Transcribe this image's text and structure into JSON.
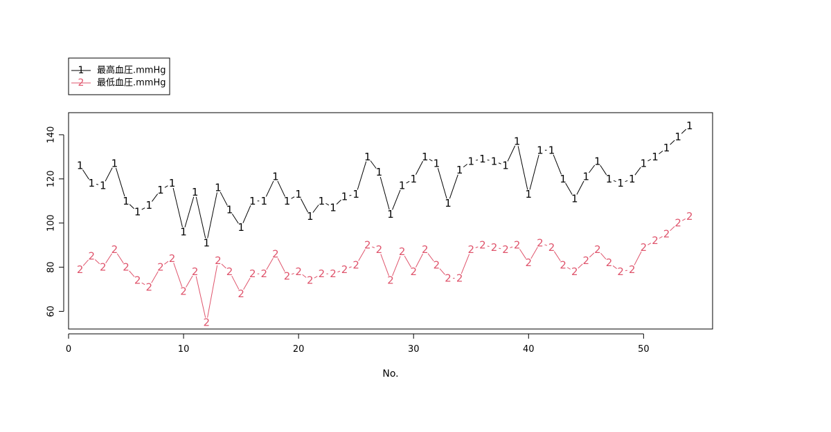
{
  "chart_data": {
    "type": "line",
    "xlabel": "No.",
    "ylabel": "",
    "xlim": [
      0,
      56
    ],
    "ylim": [
      52,
      150
    ],
    "x_ticks": [
      0,
      10,
      20,
      30,
      40,
      50
    ],
    "y_ticks": [
      60,
      80,
      100,
      120,
      140
    ],
    "grid": false,
    "legend_position": "top-left",
    "x": [
      1,
      2,
      3,
      4,
      5,
      6,
      7,
      8,
      9,
      10,
      11,
      12,
      13,
      14,
      15,
      16,
      17,
      18,
      19,
      20,
      21,
      22,
      23,
      24,
      25,
      26,
      27,
      28,
      29,
      30,
      31,
      32,
      33,
      34,
      35,
      36,
      37,
      38,
      39,
      40,
      41,
      42,
      43,
      44,
      45,
      46,
      47,
      48,
      49,
      50,
      51,
      52,
      53,
      54
    ],
    "series": [
      {
        "name": "最高血圧.mmHg",
        "marker": "1",
        "color": "#000000",
        "values": [
          126,
          118,
          117,
          127,
          110,
          105,
          108,
          115,
          118,
          96,
          114,
          91,
          116,
          106,
          98,
          110,
          110,
          121,
          110,
          113,
          103,
          110,
          107,
          112,
          113,
          130,
          123,
          104,
          117,
          120,
          130,
          127,
          109,
          124,
          128,
          129,
          128,
          126,
          137,
          113,
          133,
          133,
          120,
          111,
          121,
          128,
          120,
          118,
          120,
          127,
          130,
          134,
          139,
          144
        ]
      },
      {
        "name": "最低血圧.mmHg",
        "marker": "2",
        "color": "#DF536B",
        "values": [
          79,
          85,
          80,
          88,
          80,
          74,
          71,
          80,
          84,
          69,
          78,
          55,
          83,
          78,
          68,
          77,
          77,
          86,
          76,
          78,
          74,
          77,
          77,
          79,
          81,
          90,
          88,
          74,
          87,
          78,
          88,
          81,
          75,
          75,
          88,
          90,
          89,
          88,
          90,
          82,
          91,
          89,
          81,
          78,
          83,
          88,
          82,
          78,
          79,
          89,
          92,
          95,
          100,
          103
        ]
      }
    ]
  }
}
